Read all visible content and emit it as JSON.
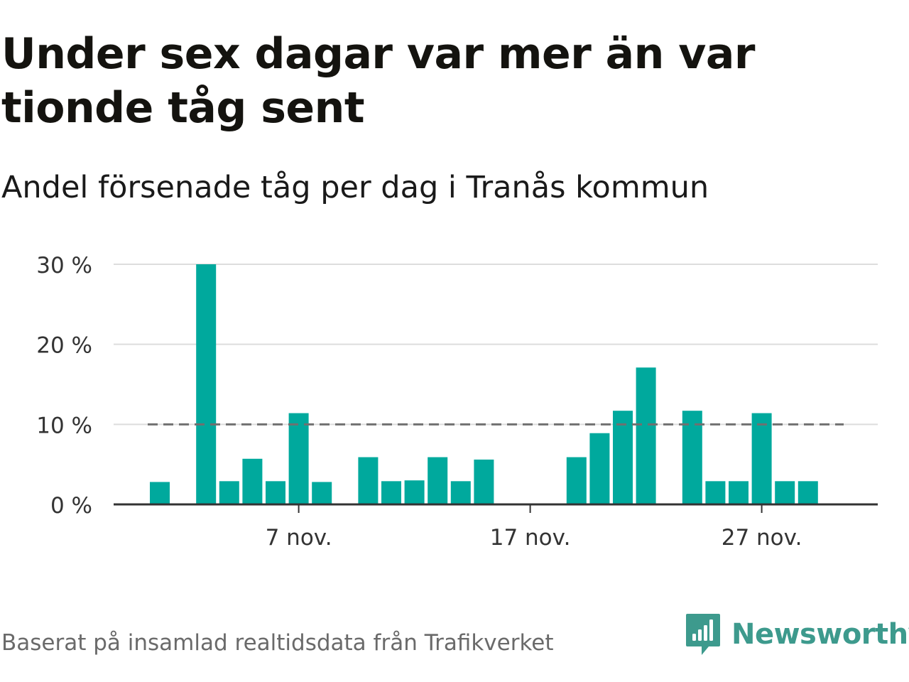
{
  "title": "Under sex dagar var mer än var tionde tåg sent",
  "subtitle": "Andel försenade tåg per dag i Tranås kommun",
  "source": "Baserat på insamlad realtidsdata från Trafikverket",
  "brand": {
    "name": "Newsworthy",
    "icon": "newsworthy-logo-icon",
    "color": "#3d9a8d"
  },
  "colors": {
    "bar": "#00a99d",
    "reference_line": "#707070",
    "grid": "#dddddd",
    "axis": "#333333"
  },
  "chart_data": {
    "type": "bar",
    "ylim": [
      0,
      30
    ],
    "yticks": [
      0,
      10,
      20,
      30
    ],
    "ytick_labels": [
      "0 %",
      "10 %",
      "20 %",
      "30 %"
    ],
    "xtick_labels": [
      {
        "day": 7,
        "label": "7 nov."
      },
      {
        "day": 17,
        "label": "17 nov."
      },
      {
        "day": 27,
        "label": "27 nov."
      }
    ],
    "reference_line": {
      "value": 10,
      "style": "dashed"
    },
    "series": [
      {
        "days": [
          1,
          2,
          3,
          4,
          5,
          6,
          7,
          8,
          9,
          10,
          11,
          12,
          13,
          14,
          15,
          16,
          17,
          18,
          19,
          20,
          21,
          22,
          23,
          24,
          25,
          26,
          27,
          28,
          29,
          30
        ],
        "values": [
          2.8,
          null,
          30.0,
          2.9,
          5.7,
          2.9,
          11.4,
          2.8,
          null,
          5.9,
          2.9,
          3.0,
          5.9,
          2.9,
          5.6,
          null,
          null,
          null,
          5.9,
          8.9,
          11.7,
          17.1,
          null,
          11.7,
          2.9,
          2.9,
          11.4,
          2.9,
          2.9,
          null
        ]
      }
    ],
    "grid": true
  }
}
